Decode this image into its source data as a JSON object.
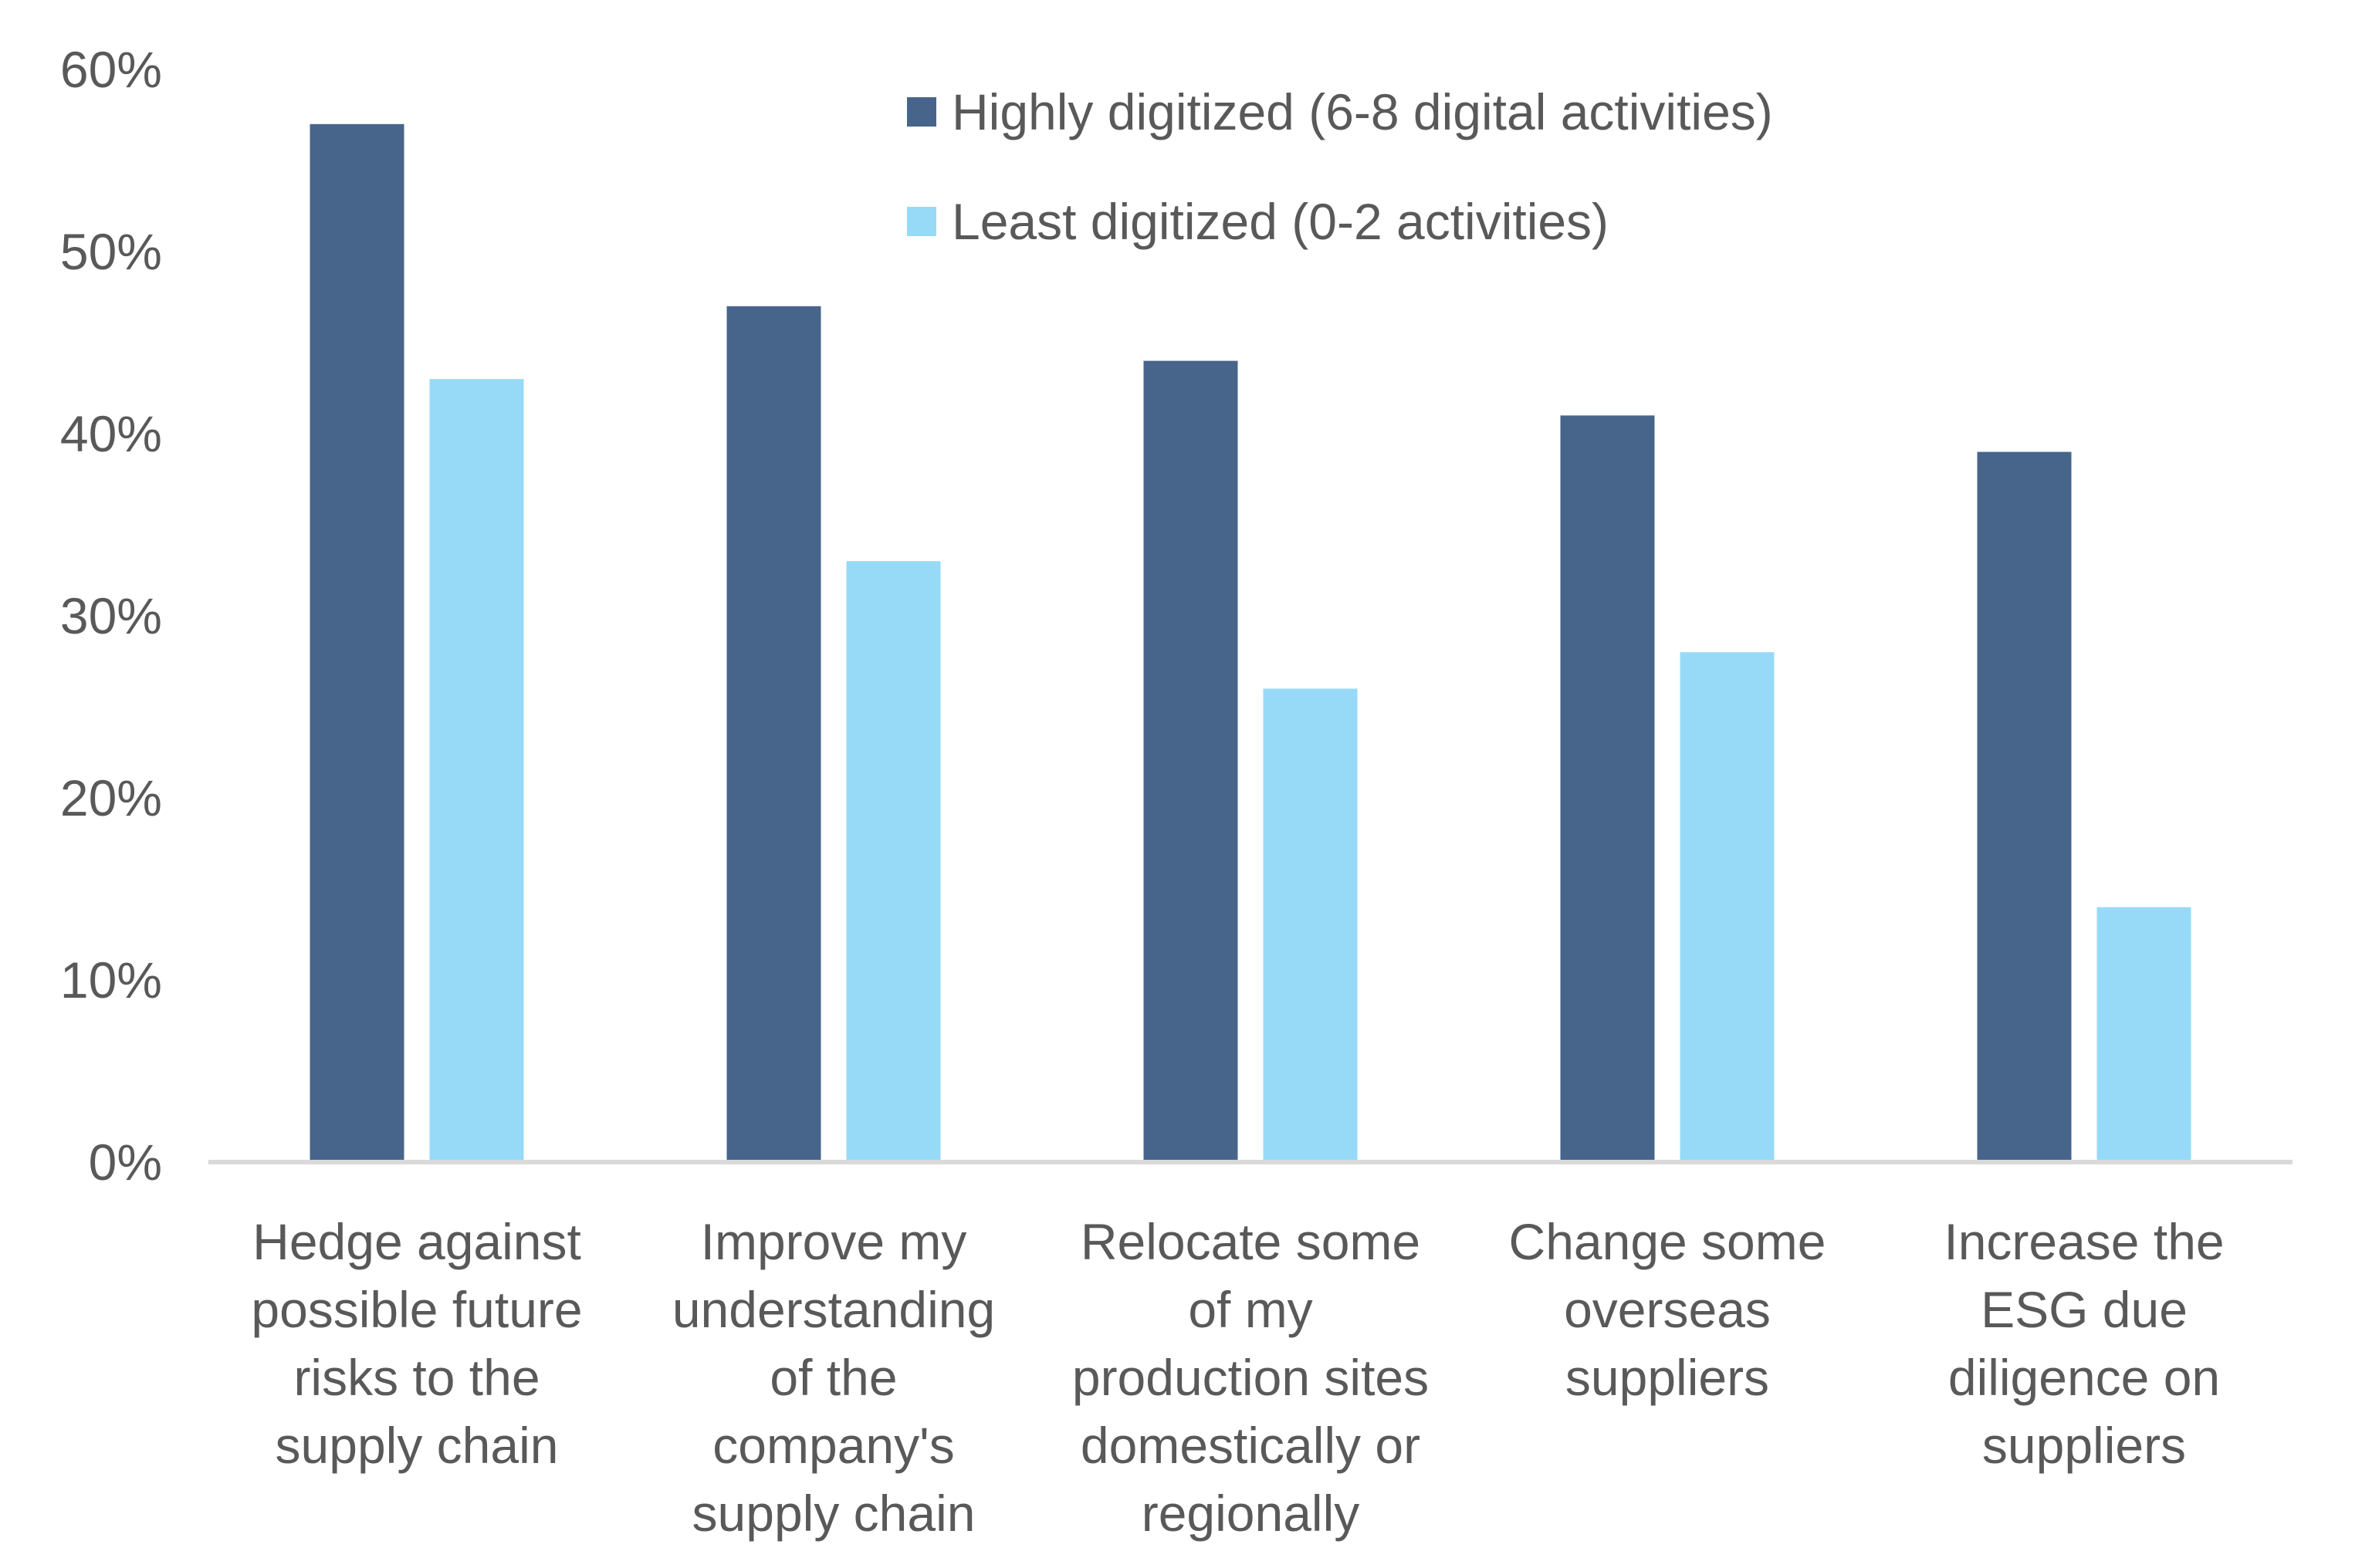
{
  "chart_data": {
    "type": "bar",
    "title": "",
    "xlabel": "",
    "ylabel": "",
    "ylim": [
      0,
      60
    ],
    "yticks": [
      0,
      10,
      20,
      30,
      40,
      50,
      60
    ],
    "ytick_labels": [
      "0%",
      "10%",
      "20%",
      "30%",
      "40%",
      "50%",
      "60%"
    ],
    "grid": false,
    "legend_position": "top-right",
    "categories": [
      [
        "Hedge against",
        "possible future",
        "risks to the",
        "supply chain"
      ],
      [
        "Improve my",
        "understanding",
        "of the",
        "company's",
        "supply chain"
      ],
      [
        "Relocate some",
        "of my",
        "production sites",
        "domestically or",
        "regionally"
      ],
      [
        "Change some",
        "overseas",
        "suppliers"
      ],
      [
        "Increase the",
        "ESG due",
        "diligence on",
        "suppliers"
      ]
    ],
    "series": [
      {
        "name": "Highly digitized (6-8 digital activities)",
        "color": "#47658B",
        "values": [
          57,
          47,
          44,
          41,
          39
        ]
      },
      {
        "name": "Least digitized (0-2 activities)",
        "color": "#97DAF8",
        "values": [
          43,
          33,
          26,
          28,
          14
        ]
      }
    ],
    "axis_color": "#D9D9D9",
    "text_color": "#595959"
  }
}
